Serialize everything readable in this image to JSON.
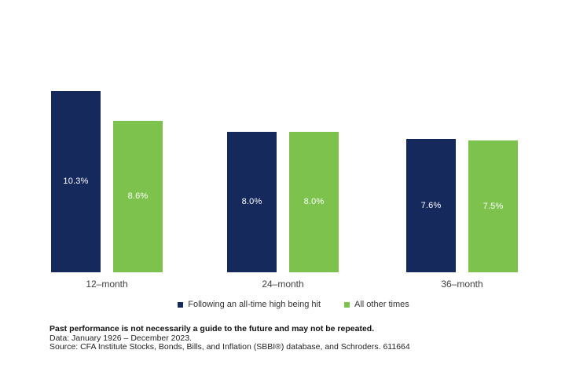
{
  "chart_data": {
    "type": "bar",
    "categories": [
      "12–month",
      "24–month",
      "36–month"
    ],
    "series": [
      {
        "name": "Following an all-time high being hit",
        "color": "#16295C",
        "values": [
          10.3,
          8.0,
          7.6
        ],
        "data_labels": [
          "10.3%",
          "8.0%",
          "7.6%"
        ],
        "label_color": "#FFFFFF"
      },
      {
        "name": "All other times",
        "color": "#7CC24D",
        "values": [
          8.6,
          8.0,
          7.5
        ],
        "data_labels": [
          "8.6%",
          "8.0%",
          "7.5%"
        ],
        "label_color": "#FFFFFF"
      }
    ],
    "title": "",
    "xlabel": "",
    "ylabel": "",
    "ylim": [
      0,
      11
    ],
    "grid": false,
    "axis_lines": false,
    "legend_position": "bottom-center",
    "data_label_position": "inside-center"
  },
  "footnotes": {
    "disclaimer": "Past performance is not necessarily a guide to the future and may not be repeated.",
    "data_range": "Data: January 1926 – December 2023.",
    "source": "Source: CFA Institute Stocks, Bonds, Bills, and Inflation (SBBI®) database, and Schroders. 611664"
  },
  "colors": {
    "series_navy": "#16295C",
    "series_green": "#7CC24D",
    "axis_text": "#404040",
    "footnote_text": "#1F1F1F",
    "background": "#FFFFFF"
  }
}
